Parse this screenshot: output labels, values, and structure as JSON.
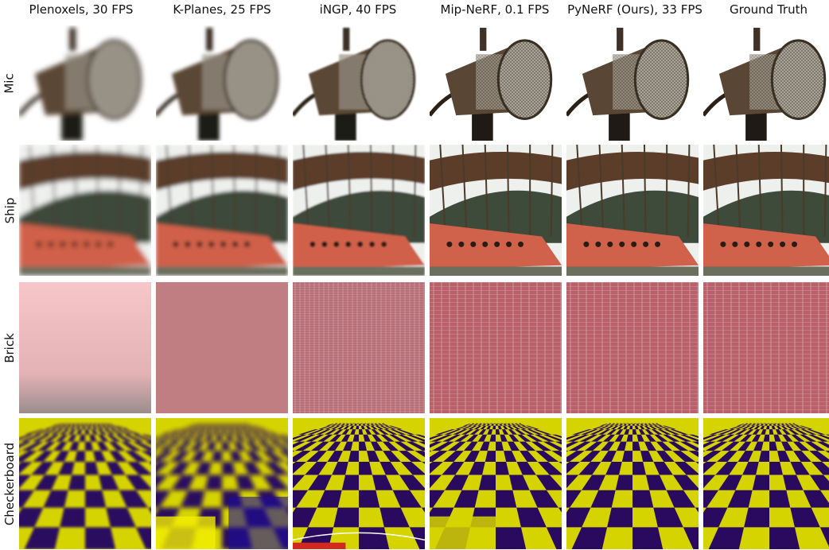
{
  "columns": [
    {
      "label": "Plenoxels, 30 FPS",
      "method": "plenoxels"
    },
    {
      "label": "K-Planes, 25 FPS",
      "method": "kplanes"
    },
    {
      "label": "iNGP, 40 FPS",
      "method": "ingp"
    },
    {
      "label": "Mip-NeRF, 0.1 FPS",
      "method": "mipnerf"
    },
    {
      "label": "PyNeRF (Ours), 33 FPS",
      "method": "pynerf"
    },
    {
      "label": "Ground Truth",
      "method": "gt"
    }
  ],
  "rows": [
    {
      "label": "Mic",
      "scene": "mic"
    },
    {
      "label": "Ship",
      "scene": "ship"
    },
    {
      "label": "Brick",
      "scene": "brick"
    },
    {
      "label": "Checkerboard",
      "scene": "checker"
    }
  ],
  "colors": {
    "mic_body": "#5a4634",
    "mic_grille": "#b9b3a6",
    "ship_hull": "#d0614a",
    "ship_water": "#3e4a3a",
    "brick_red": "#b9606a",
    "brick_mortar": "#d8a4aa",
    "checker_yellow": "#d6d400",
    "checker_navy": "#2a0a5e"
  }
}
